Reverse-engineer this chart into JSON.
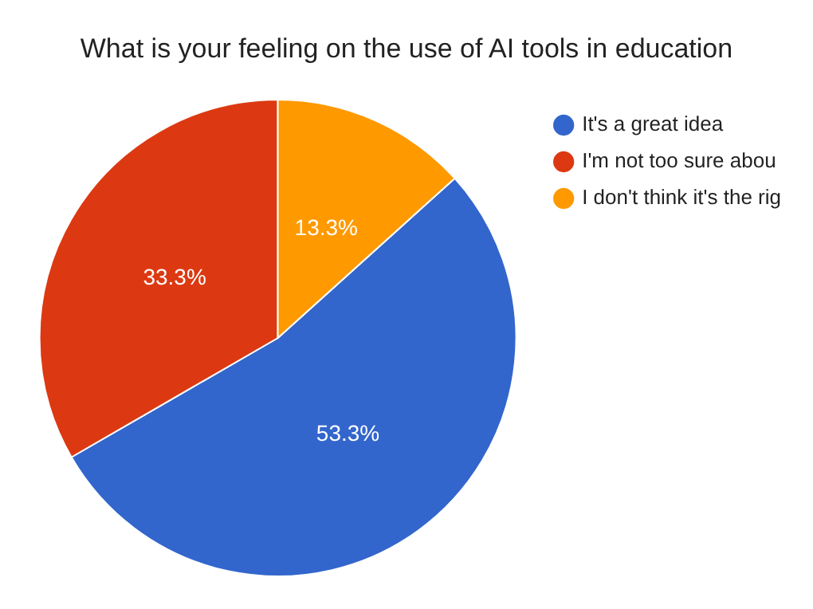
{
  "chart_data": {
    "type": "pie",
    "title": "What is your feeling on the use of AI tools in education",
    "categories": [
      "It's a great idea",
      "I'm not too sure abou",
      "I don't think it's the rig"
    ],
    "values": [
      53.3,
      33.3,
      13.3
    ],
    "value_labels": [
      "53.3%",
      "33.3%",
      "13.3%"
    ],
    "colors": [
      "#3366cc",
      "#dc3912",
      "#ff9900"
    ],
    "legend": "right"
  }
}
